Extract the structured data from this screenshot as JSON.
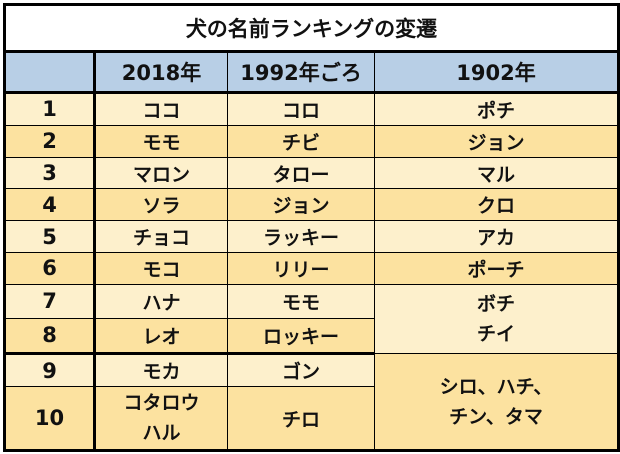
{
  "title": "犬の名前ランキングの変遷",
  "headers": [
    "",
    "2018年",
    "1992年ごろ",
    "1902年"
  ],
  "rows": [
    {
      "rank": "1",
      "y2018": "ココ",
      "y1992": "コロ",
      "y1902": "ポチ"
    },
    {
      "rank": "2",
      "y2018": "モモ",
      "y1992": "チビ",
      "y1902": "ジョン"
    },
    {
      "rank": "3",
      "y2018": "マロン",
      "y1992": "タロー",
      "y1902": "マル"
    },
    {
      "rank": "4",
      "y2018": "ソラ",
      "y1992": "ジョン",
      "y1902": "クロ"
    },
    {
      "rank": "5",
      "y2018": "チョコ",
      "y1992": "ラッキー",
      "y1902": "アカ"
    },
    {
      "rank": "6",
      "y2018": "モコ",
      "y1992": "リリー",
      "y1902": "ポーチ"
    },
    {
      "rank": "7",
      "y2018": "ハナ",
      "y1992": "モモ"
    },
    {
      "rank": "8",
      "y2018": "レオ",
      "y1992": "ロッキー"
    },
    {
      "rank": "9",
      "y2018": "モカ",
      "y1992": "ゴン"
    },
    {
      "rank": "10",
      "y2018_line1": "コタロウ",
      "y2018_line2": "ハル",
      "y1992": "チロ"
    }
  ],
  "merged": {
    "rows7_8_1902_line1": "ボチ",
    "rows7_8_1902_line2": "チイ",
    "rows9_10_1902_line1": "シロ、ハチ、",
    "rows9_10_1902_line2": "チン、タマ"
  },
  "colors": {
    "header_bg": "#b8cfe6",
    "row_light": "#fdf0cc",
    "row_dark": "#fce2a0",
    "border": "#000000"
  }
}
